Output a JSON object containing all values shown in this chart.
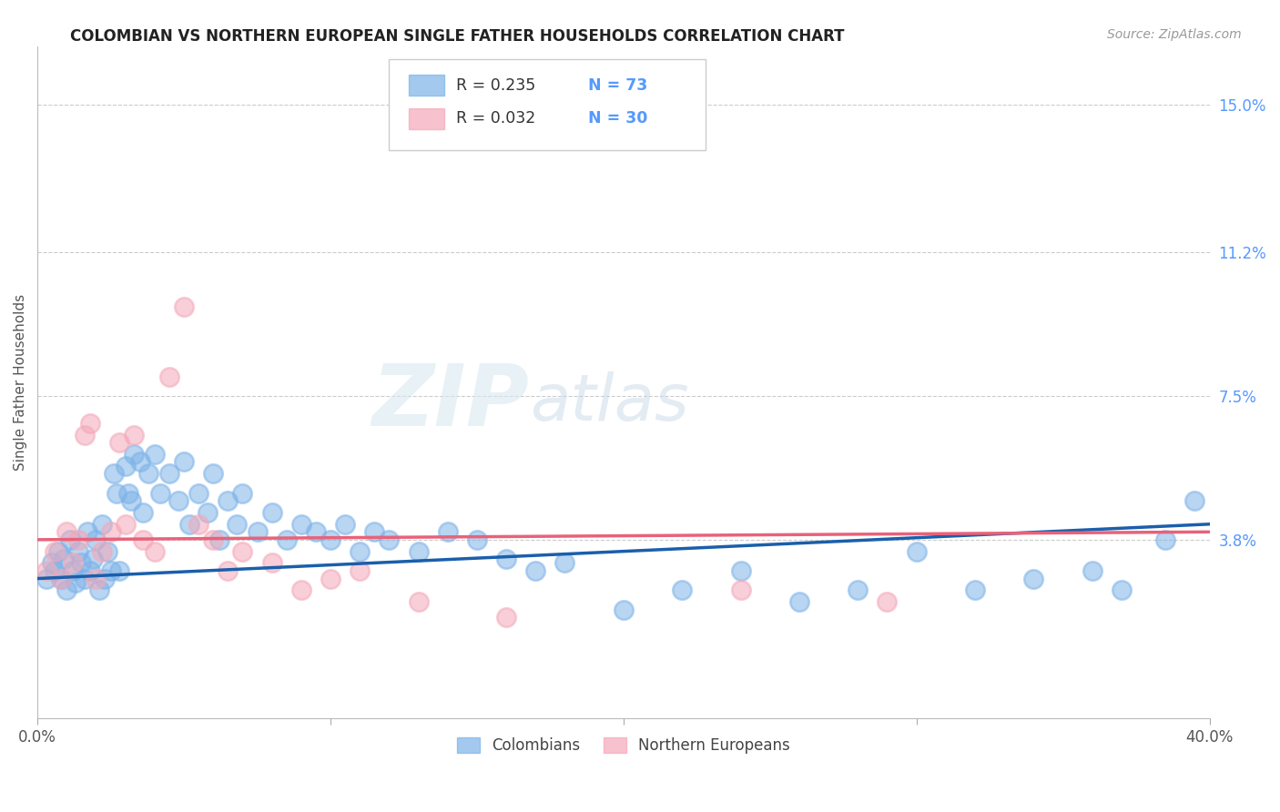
{
  "title": "COLOMBIAN VS NORTHERN EUROPEAN SINGLE FATHER HOUSEHOLDS CORRELATION CHART",
  "source": "Source: ZipAtlas.com",
  "ylabel": "Single Father Households",
  "watermark_zip": "ZIP",
  "watermark_atlas": "atlas",
  "xlim": [
    0.0,
    0.4
  ],
  "ylim": [
    -0.008,
    0.165
  ],
  "ytick_right": [
    0.038,
    0.075,
    0.112,
    0.15
  ],
  "ytick_right_labels": [
    "3.8%",
    "7.5%",
    "11.2%",
    "15.0%"
  ],
  "blue_color": "#7EB3E8",
  "pink_color": "#F4A8B8",
  "line_blue": "#1A5FAB",
  "line_pink": "#E8627A",
  "n_color": "#5599FF",
  "colombian_label": "Colombians",
  "northern_label": "Northern Europeans",
  "colombian_x": [
    0.003,
    0.005,
    0.006,
    0.007,
    0.008,
    0.009,
    0.01,
    0.011,
    0.012,
    0.013,
    0.014,
    0.015,
    0.016,
    0.017,
    0.018,
    0.019,
    0.02,
    0.021,
    0.022,
    0.023,
    0.024,
    0.025,
    0.026,
    0.027,
    0.028,
    0.03,
    0.031,
    0.032,
    0.033,
    0.035,
    0.036,
    0.038,
    0.04,
    0.042,
    0.045,
    0.048,
    0.05,
    0.052,
    0.055,
    0.058,
    0.06,
    0.062,
    0.065,
    0.068,
    0.07,
    0.075,
    0.08,
    0.085,
    0.09,
    0.095,
    0.1,
    0.105,
    0.11,
    0.115,
    0.12,
    0.13,
    0.14,
    0.15,
    0.16,
    0.17,
    0.18,
    0.2,
    0.22,
    0.24,
    0.26,
    0.28,
    0.3,
    0.32,
    0.34,
    0.36,
    0.37,
    0.385,
    0.395
  ],
  "colombian_y": [
    0.028,
    0.032,
    0.03,
    0.035,
    0.028,
    0.033,
    0.025,
    0.038,
    0.03,
    0.027,
    0.035,
    0.032,
    0.028,
    0.04,
    0.03,
    0.033,
    0.038,
    0.025,
    0.042,
    0.028,
    0.035,
    0.03,
    0.055,
    0.05,
    0.03,
    0.057,
    0.05,
    0.048,
    0.06,
    0.058,
    0.045,
    0.055,
    0.06,
    0.05,
    0.055,
    0.048,
    0.058,
    0.042,
    0.05,
    0.045,
    0.055,
    0.038,
    0.048,
    0.042,
    0.05,
    0.04,
    0.045,
    0.038,
    0.042,
    0.04,
    0.038,
    0.042,
    0.035,
    0.04,
    0.038,
    0.035,
    0.04,
    0.038,
    0.033,
    0.03,
    0.032,
    0.02,
    0.025,
    0.03,
    0.022,
    0.025,
    0.035,
    0.025,
    0.028,
    0.03,
    0.025,
    0.038,
    0.048
  ],
  "northern_x": [
    0.003,
    0.006,
    0.008,
    0.01,
    0.012,
    0.014,
    0.016,
    0.018,
    0.02,
    0.022,
    0.025,
    0.028,
    0.03,
    0.033,
    0.036,
    0.04,
    0.045,
    0.05,
    0.055,
    0.06,
    0.065,
    0.07,
    0.08,
    0.09,
    0.1,
    0.11,
    0.13,
    0.16,
    0.24,
    0.29
  ],
  "northern_y": [
    0.03,
    0.035,
    0.028,
    0.04,
    0.032,
    0.038,
    0.065,
    0.068,
    0.028,
    0.035,
    0.04,
    0.063,
    0.042,
    0.065,
    0.038,
    0.035,
    0.08,
    0.098,
    0.042,
    0.038,
    0.03,
    0.035,
    0.032,
    0.025,
    0.028,
    0.03,
    0.022,
    0.018,
    0.025,
    0.022
  ]
}
